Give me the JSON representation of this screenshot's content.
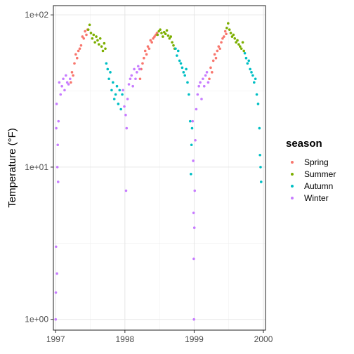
{
  "chart_data": {
    "type": "scatter",
    "title": "",
    "xlabel": "",
    "ylabel": "Temperature (°F)",
    "yscale": "log10",
    "xlim": [
      "1996-12-20",
      "2000-01-12"
    ],
    "ylim": [
      0.85,
      115
    ],
    "x_ticks": [
      {
        "date": "1997-01-01",
        "label": "1997"
      },
      {
        "date": "1998-01-01",
        "label": "1998"
      },
      {
        "date": "1999-01-01",
        "label": "1999"
      },
      {
        "date": "2000-01-01",
        "label": "2000"
      }
    ],
    "y_ticks": [
      {
        "value": 1,
        "label": "1e+00"
      },
      {
        "value": 10,
        "label": "1e+01"
      },
      {
        "value": 100,
        "label": "1e+02"
      }
    ],
    "grid": true,
    "legend": {
      "title": "season",
      "position": "right",
      "entries": [
        {
          "label": "Spring",
          "color": "#F8766D"
        },
        {
          "label": "Summer",
          "color": "#7CAE00"
        },
        {
          "label": "Autumn",
          "color": "#00BFC4"
        },
        {
          "label": "Winter",
          "color": "#C77CFF"
        }
      ]
    },
    "series": [
      {
        "name": "Spring",
        "color": "#F8766D",
        "points": [
          [
            "1997-03-22",
            36
          ],
          [
            "1997-03-28",
            42
          ],
          [
            "1997-04-03",
            40
          ],
          [
            "1997-04-10",
            48
          ],
          [
            "1997-04-17",
            55
          ],
          [
            "1997-04-24",
            52
          ],
          [
            "1997-05-01",
            58
          ],
          [
            "1997-05-08",
            60
          ],
          [
            "1997-05-15",
            63
          ],
          [
            "1997-05-22",
            72
          ],
          [
            "1997-05-29",
            70
          ],
          [
            "1997-06-05",
            78
          ],
          [
            "1997-06-12",
            74
          ],
          [
            "1997-06-18",
            80
          ],
          [
            "1998-03-22",
            38
          ],
          [
            "1998-03-28",
            44
          ],
          [
            "1998-04-04",
            48
          ],
          [
            "1998-04-11",
            52
          ],
          [
            "1998-04-18",
            58
          ],
          [
            "1998-04-25",
            55
          ],
          [
            "1998-05-02",
            62
          ],
          [
            "1998-05-09",
            60
          ],
          [
            "1998-05-16",
            68
          ],
          [
            "1998-05-23",
            66
          ],
          [
            "1998-05-30",
            70
          ],
          [
            "1998-06-06",
            72
          ],
          [
            "1998-06-13",
            74
          ],
          [
            "1998-06-19",
            76
          ],
          [
            "1999-03-22",
            38
          ],
          [
            "1999-03-29",
            45
          ],
          [
            "1999-04-05",
            42
          ],
          [
            "1999-04-12",
            50
          ],
          [
            "1999-04-19",
            55
          ],
          [
            "1999-04-26",
            52
          ],
          [
            "1999-05-03",
            58
          ],
          [
            "1999-05-10",
            62
          ],
          [
            "1999-05-17",
            60
          ],
          [
            "1999-05-24",
            66
          ],
          [
            "1999-05-31",
            70
          ],
          [
            "1999-06-07",
            72
          ],
          [
            "1999-06-14",
            78
          ],
          [
            "1999-06-19",
            75
          ]
        ]
      },
      {
        "name": "Summer",
        "color": "#7CAE00",
        "points": [
          [
            "1997-06-22",
            80
          ],
          [
            "1997-06-29",
            86
          ],
          [
            "1997-07-06",
            76
          ],
          [
            "1997-07-13",
            70
          ],
          [
            "1997-07-20",
            74
          ],
          [
            "1997-07-27",
            66
          ],
          [
            "1997-08-03",
            72
          ],
          [
            "1997-08-10",
            68
          ],
          [
            "1997-08-17",
            64
          ],
          [
            "1997-08-24",
            70
          ],
          [
            "1997-08-31",
            62
          ],
          [
            "1997-09-07",
            58
          ],
          [
            "1997-09-14",
            65
          ],
          [
            "1997-09-20",
            60
          ],
          [
            "1998-06-22",
            74
          ],
          [
            "1998-06-29",
            78
          ],
          [
            "1998-07-06",
            80
          ],
          [
            "1998-07-13",
            76
          ],
          [
            "1998-07-20",
            72
          ],
          [
            "1998-07-27",
            77
          ],
          [
            "1998-08-03",
            75
          ],
          [
            "1998-08-10",
            79
          ],
          [
            "1998-08-17",
            73
          ],
          [
            "1998-08-24",
            70
          ],
          [
            "1998-08-31",
            72
          ],
          [
            "1998-09-07",
            66
          ],
          [
            "1998-09-14",
            63
          ],
          [
            "1998-09-20",
            60
          ],
          [
            "1999-06-22",
            82
          ],
          [
            "1999-06-29",
            88
          ],
          [
            "1999-07-06",
            80
          ],
          [
            "1999-07-13",
            76
          ],
          [
            "1999-07-20",
            72
          ],
          [
            "1999-07-27",
            74
          ],
          [
            "1999-08-03",
            70
          ],
          [
            "1999-08-10",
            66
          ],
          [
            "1999-08-17",
            68
          ],
          [
            "1999-08-24",
            64
          ],
          [
            "1999-08-31",
            62
          ],
          [
            "1999-09-07",
            60
          ],
          [
            "1999-09-14",
            66
          ],
          [
            "1999-09-20",
            58
          ]
        ]
      },
      {
        "name": "Autumn",
        "color": "#00BFC4",
        "points": [
          [
            "1997-09-25",
            48
          ],
          [
            "1997-10-02",
            44
          ],
          [
            "1997-10-09",
            38
          ],
          [
            "1997-10-16",
            42
          ],
          [
            "1997-10-23",
            32
          ],
          [
            "1997-10-30",
            36
          ],
          [
            "1997-11-06",
            28
          ],
          [
            "1997-11-13",
            30
          ],
          [
            "1997-11-20",
            34
          ],
          [
            "1997-11-27",
            26
          ],
          [
            "1997-12-04",
            32
          ],
          [
            "1997-12-11",
            24
          ],
          [
            "1997-12-18",
            30
          ],
          [
            "1998-09-25",
            60
          ],
          [
            "1998-10-02",
            54
          ],
          [
            "1998-10-09",
            58
          ],
          [
            "1998-10-16",
            50
          ],
          [
            "1998-10-23",
            48
          ],
          [
            "1998-10-30",
            45
          ],
          [
            "1998-11-06",
            42
          ],
          [
            "1998-11-13",
            40
          ],
          [
            "1998-11-20",
            44
          ],
          [
            "1998-11-27",
            36
          ],
          [
            "1998-12-04",
            30
          ],
          [
            "1998-12-11",
            20
          ],
          [
            "1998-12-15",
            9
          ],
          [
            "1998-12-18",
            14
          ],
          [
            "1998-12-21",
            18
          ],
          [
            "1999-09-25",
            56
          ],
          [
            "1999-10-02",
            52
          ],
          [
            "1999-10-09",
            48
          ],
          [
            "1999-10-16",
            50
          ],
          [
            "1999-10-23",
            44
          ],
          [
            "1999-10-30",
            42
          ],
          [
            "1999-11-06",
            40
          ],
          [
            "1999-11-13",
            36
          ],
          [
            "1999-11-20",
            38
          ],
          [
            "1999-11-27",
            30
          ],
          [
            "1999-12-04",
            26
          ],
          [
            "1999-12-11",
            18
          ],
          [
            "1999-12-14",
            12
          ],
          [
            "1999-12-17",
            10
          ],
          [
            "1999-12-20",
            8
          ]
        ]
      },
      {
        "name": "Winter",
        "color": "#C77CFF",
        "points": [
          [
            "1997-01-01",
            1
          ],
          [
            "1997-01-02",
            1.5
          ],
          [
            "1997-01-03",
            3
          ],
          [
            "1997-01-04",
            18
          ],
          [
            "1997-01-06",
            26
          ],
          [
            "1997-01-08",
            2
          ],
          [
            "1997-01-10",
            10
          ],
          [
            "1997-01-12",
            14
          ],
          [
            "1997-01-14",
            8
          ],
          [
            "1997-01-16",
            20
          ],
          [
            "1997-01-20",
            36
          ],
          [
            "1997-01-27",
            30
          ],
          [
            "1997-02-03",
            34
          ],
          [
            "1997-02-10",
            38
          ],
          [
            "1997-02-17",
            32
          ],
          [
            "1997-02-24",
            40
          ],
          [
            "1997-03-03",
            36
          ],
          [
            "1997-03-10",
            35
          ],
          [
            "1997-03-18",
            38
          ],
          [
            "1997-12-22",
            32
          ],
          [
            "1997-12-29",
            25
          ],
          [
            "1998-01-05",
            22
          ],
          [
            "1998-01-07",
            7
          ],
          [
            "1998-01-10",
            18
          ],
          [
            "1998-01-15",
            28
          ],
          [
            "1998-01-22",
            35
          ],
          [
            "1998-01-29",
            38
          ],
          [
            "1998-02-05",
            40
          ],
          [
            "1998-02-12",
            34
          ],
          [
            "1998-02-19",
            44
          ],
          [
            "1998-02-26",
            38
          ],
          [
            "1998-03-05",
            42
          ],
          [
            "1998-03-12",
            46
          ],
          [
            "1998-03-19",
            44
          ],
          [
            "1998-12-24",
            20
          ],
          [
            "1998-12-27",
            11
          ],
          [
            "1998-12-29",
            5
          ],
          [
            "1998-12-30",
            2.5
          ],
          [
            "1998-12-31",
            1
          ],
          [
            "1999-01-02",
            4
          ],
          [
            "1999-01-04",
            7
          ],
          [
            "1999-01-07",
            15
          ],
          [
            "1999-01-12",
            24
          ],
          [
            "1999-01-19",
            30
          ],
          [
            "1999-01-26",
            34
          ],
          [
            "1999-02-02",
            36
          ],
          [
            "1999-02-09",
            28
          ],
          [
            "1999-02-16",
            38
          ],
          [
            "1999-02-23",
            34
          ],
          [
            "1999-03-02",
            40
          ],
          [
            "1999-03-09",
            42
          ],
          [
            "1999-03-16",
            36
          ]
        ]
      }
    ]
  }
}
